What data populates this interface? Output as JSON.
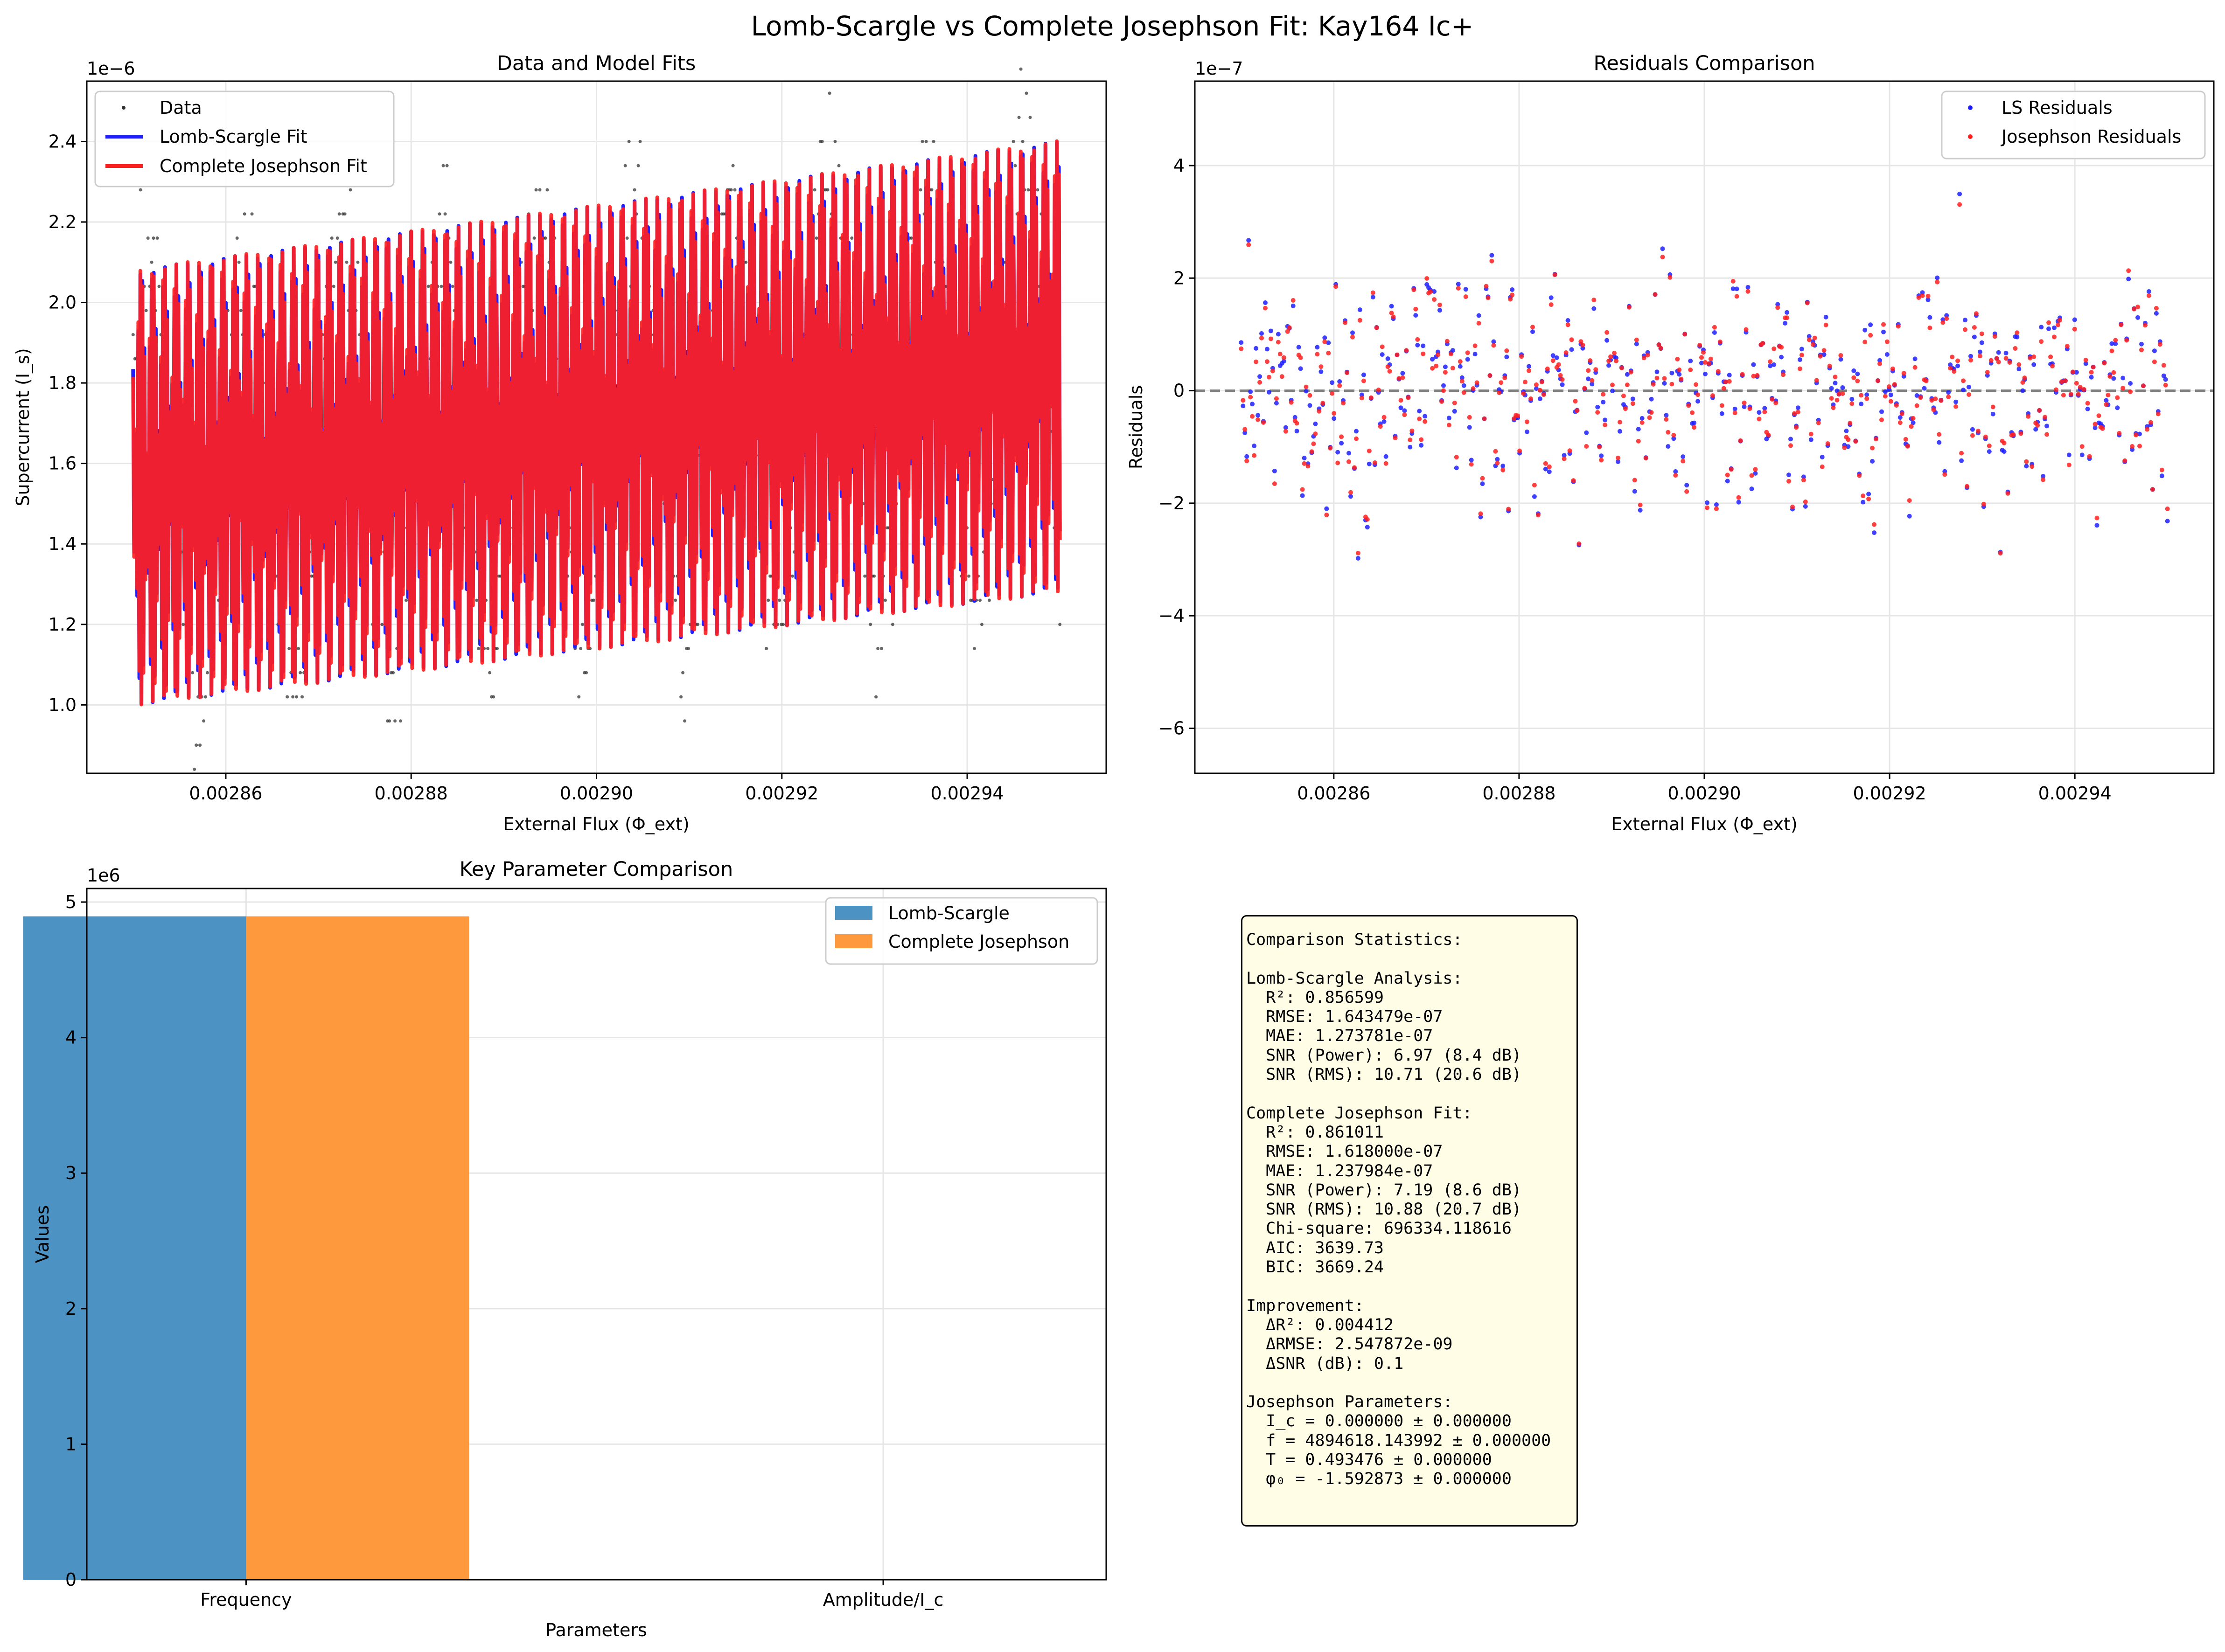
{
  "figure": {
    "title": "Lomb-Scargle vs Complete Josephson Fit: Kay164 Ic+"
  },
  "panel_fits": {
    "title": "Data and Model Fits",
    "xlabel": "External Flux (Φ_ext)",
    "ylabel": "Supercurrent (I_s)",
    "offset_label": "1e−6",
    "legend": [
      "Data",
      "Lomb-Scargle Fit",
      "Complete Josephson Fit"
    ]
  },
  "panel_residuals": {
    "title": "Residuals Comparison",
    "xlabel": "External Flux (Φ_ext)",
    "ylabel": "Residuals",
    "offset_label": "1e−7",
    "legend": [
      "LS Residuals",
      "Josephson Residuals"
    ]
  },
  "panel_params": {
    "title": "Key Parameter Comparison",
    "xlabel": "Parameters",
    "ylabel": "Values",
    "offset_label": "1e6",
    "legend": [
      "Lomb-Scargle",
      "Complete Josephson"
    ]
  },
  "stats": {
    "l01": "Comparison Statistics:",
    "l02": "",
    "l03": "Lomb-Scargle Analysis:",
    "l04": "  R²: 0.856599",
    "l05": "  RMSE: 1.643479e-07",
    "l06": "  MAE: 1.273781e-07",
    "l07": "  SNR (Power): 6.97 (8.4 dB)",
    "l08": "  SNR (RMS): 10.71 (20.6 dB)",
    "l09": "",
    "l10": "Complete Josephson Fit:",
    "l11": "  R²: 0.861011",
    "l12": "  RMSE: 1.618000e-07",
    "l13": "  MAE: 1.237984e-07",
    "l14": "  SNR (Power): 7.19 (8.6 dB)",
    "l15": "  SNR (RMS): 10.88 (20.7 dB)",
    "l16": "  Chi-square: 696334.118616",
    "l17": "  AIC: 3639.73",
    "l18": "  BIC: 3669.24",
    "l19": "",
    "l20": "Improvement:",
    "l21": "  ΔR²: 0.004412",
    "l22": "  ΔRMSE: 2.547872e-09",
    "l23": "  ΔSNR (dB): 0.1",
    "l24": "",
    "l25": "Josephson Parameters:",
    "l26": "  I_c = 0.000000 ± 0.000000",
    "l27": "  f = 4894618.143992 ± 0.000000",
    "l28": "  T = 0.493476 ± 0.000000",
    "l29": "  φ₀ = -1.592873 ± 0.000000"
  },
  "colors": {
    "data": "#333333",
    "ls": "#1f1fff",
    "jos": "#ff1f1f",
    "bar_ls": "#4c92c3",
    "bar_jos": "#ff993e",
    "grid": "#e6e6e6",
    "zero_line": "#808080"
  },
  "chart_data": [
    {
      "type": "scatter",
      "title": "Data and Model Fits",
      "xlabel": "External Flux (Φ_ext)",
      "ylabel": "Supercurrent (I_s)",
      "xlim": [
        0.002845,
        0.002955
      ],
      "ylim": [
        8.3e-07,
        2.55e-06
      ],
      "xticks": [
        "0.00286",
        "0.00288",
        "0.00290",
        "0.00292",
        "0.00294"
      ],
      "yticks": [
        "1.0",
        "1.2",
        "1.4",
        "1.6",
        "1.8",
        "2.0",
        "2.2",
        "2.4"
      ],
      "grid": true,
      "legend_position": "upper left",
      "model": {
        "frequency": 4894618.143992,
        "phase": -1.592873,
        "x_range": [
          0.00285,
          0.00295
        ],
        "offset_start": 1.54e-06,
        "offset_end": 1.84e-06,
        "amplitude_start": 5.4e-07,
        "amplitude_end": 5.6e-07
      },
      "series": [
        {
          "name": "Data",
          "style": "points",
          "n_points": 500
        },
        {
          "name": "Lomb-Scargle Fit",
          "style": "line",
          "shape": "sinusoid"
        },
        {
          "name": "Complete Josephson Fit",
          "style": "line",
          "shape": "sinusoid"
        }
      ]
    },
    {
      "type": "scatter",
      "title": "Residuals Comparison",
      "xlabel": "External Flux (Φ_ext)",
      "ylabel": "Residuals",
      "xlim": [
        0.002845,
        0.002955
      ],
      "ylim": [
        -6.8e-07,
        5.5e-07
      ],
      "xticks": [
        "0.00286",
        "0.00288",
        "0.00290",
        "0.00292",
        "0.00294"
      ],
      "yticks": [
        "−6",
        "−4",
        "−2",
        "0",
        "2",
        "4"
      ],
      "grid": true,
      "reference_line": 0,
      "legend_position": "upper right",
      "series": [
        {
          "name": "LS Residuals",
          "n_points": 500
        },
        {
          "name": "Josephson Residuals",
          "n_points": 500
        }
      ]
    },
    {
      "type": "bar",
      "title": "Key Parameter Comparison",
      "xlabel": "Parameters",
      "ylabel": "Values",
      "categories": [
        "Frequency",
        "Amplitude/I_c"
      ],
      "ylim": [
        0,
        5100000.0
      ],
      "yticks": [
        "0",
        "1",
        "2",
        "3",
        "4",
        "5"
      ],
      "grid": true,
      "legend_position": "upper right",
      "series": [
        {
          "name": "Lomb-Scargle",
          "values": [
            4894618,
            5.5e-07
          ]
        },
        {
          "name": "Complete Josephson",
          "values": [
            4894618.143992,
            0.0
          ]
        }
      ]
    }
  ]
}
